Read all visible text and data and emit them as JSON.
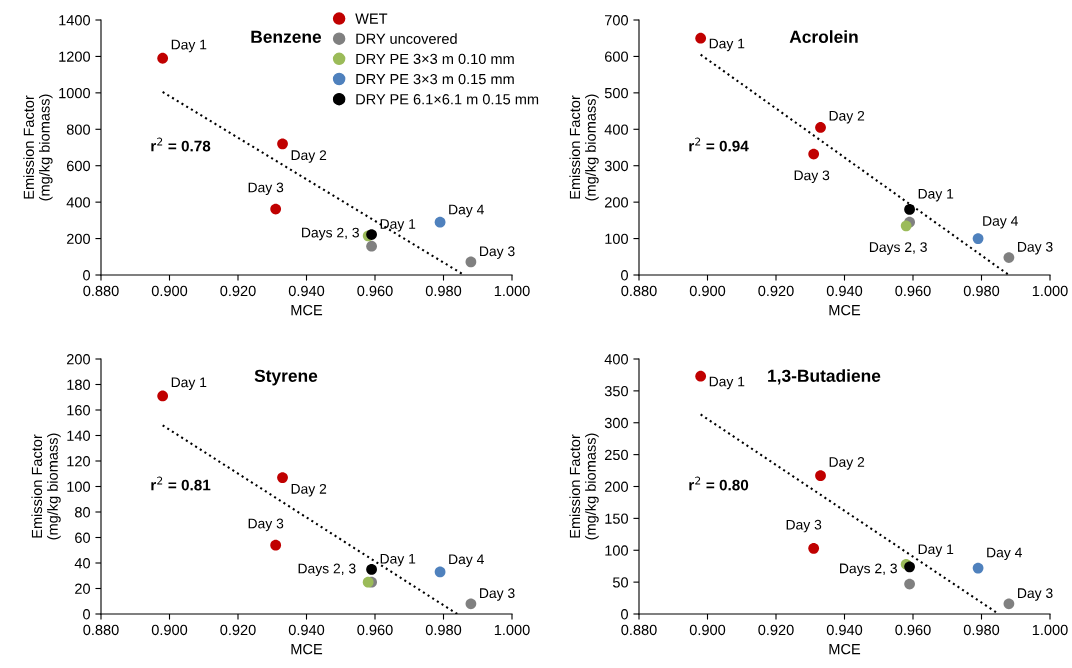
{
  "chart_data": [
    {
      "type": "scatter",
      "title": "Benzene",
      "xlabel": "MCE",
      "ylabel": "Emission Factor\n(mg/kg biomass)",
      "xlim": [
        0.88,
        1.0
      ],
      "ylim": [
        0,
        1400
      ],
      "xticks": [
        {
          "value": 0.88,
          "label": "0.880"
        },
        {
          "value": 0.9,
          "label": "0.900"
        },
        {
          "value": 0.92,
          "label": "0.920"
        },
        {
          "value": 0.94,
          "label": "0.940"
        },
        {
          "value": 0.96,
          "label": "0.960"
        },
        {
          "value": 0.98,
          "label": "0.980"
        },
        {
          "value": 1.0,
          "label": "1.000"
        }
      ],
      "yticks": [
        0,
        200,
        400,
        600,
        800,
        1000,
        1200,
        1400
      ],
      "marker": "circle",
      "grid": false,
      "legend": "top right",
      "series": [
        {
          "name": "WET",
          "color": "#c00000",
          "x": [
            0.898,
            0.933,
            0.931
          ],
          "values": [
            1190,
            720,
            362
          ]
        },
        {
          "name": "DRY uncovered",
          "color": "#808080",
          "x": [
            0.959,
            0.988
          ],
          "values": [
            158,
            72
          ]
        },
        {
          "name": "DRY PE 3×3 m 0.10 mm",
          "color": "#9bbb59",
          "x": [
            0.958
          ],
          "values": [
            215
          ]
        },
        {
          "name": "DRY PE 3×3 m 0.15 mm",
          "color": "#4f81bd",
          "x": [
            0.979
          ],
          "values": [
            290
          ]
        },
        {
          "name": "DRY PE 6.1×6.1 m 0.15 mm",
          "color": "#000000",
          "x": [
            0.959
          ],
          "values": [
            222
          ]
        },
        {
          "type": "line",
          "color": "#000000",
          "line_style": "dotted",
          "marker": "none",
          "x": [
            0.898,
            0.986
          ],
          "values": [
            1005,
            0
          ]
        }
      ],
      "annotations": [
        "r$^{2}$ = 0.78",
        {
          "text": "Day 1",
          "x": 0.898,
          "y": 1190
        },
        {
          "text": "Day 2",
          "x": 0.933,
          "y": 720
        },
        {
          "text": "Day 3",
          "x": 0.931,
          "y": 362
        },
        {
          "text": "Days 2, 3",
          "x": 0.959,
          "y": 158
        },
        {
          "text": "Day 1",
          "x": 0.959,
          "y": 222
        },
        {
          "text": "Day 4",
          "x": 0.979,
          "y": 290
        },
        {
          "text": "Day 3",
          "x": 0.988,
          "y": 72
        }
      ]
    },
    {
      "type": "scatter",
      "title": "Acrolein",
      "xlabel": "MCE",
      "ylabel": "Emission Factor\n(mg/kg biomass)",
      "xlim": [
        0.88,
        1.0
      ],
      "ylim": [
        0,
        700
      ],
      "xticks": [
        {
          "value": 0.88,
          "label": "0.880"
        },
        {
          "value": 0.9,
          "label": "0.900"
        },
        {
          "value": 0.92,
          "label": "0.920"
        },
        {
          "value": 0.94,
          "label": "0.940"
        },
        {
          "value": 0.96,
          "label": "0.960"
        },
        {
          "value": 0.98,
          "label": "0.980"
        },
        {
          "value": 1.0,
          "label": "1.000"
        }
      ],
      "yticks": [
        0,
        100,
        200,
        300,
        400,
        500,
        600,
        700
      ],
      "marker": "circle",
      "grid": false,
      "series": [
        {
          "color": "#c00000",
          "x": [
            0.898,
            0.933,
            0.931
          ],
          "values": [
            650,
            405,
            332
          ]
        },
        {
          "color": "#808080",
          "x": [
            0.959,
            0.988
          ],
          "values": [
            145,
            48
          ]
        },
        {
          "color": "#9bbb59",
          "x": [
            0.958
          ],
          "values": [
            135
          ]
        },
        {
          "color": "#4f81bd",
          "x": [
            0.979
          ],
          "values": [
            100
          ]
        },
        {
          "color": "#000000",
          "x": [
            0.959
          ],
          "values": [
            180
          ]
        },
        {
          "type": "line",
          "color": "#000000",
          "line_style": "dotted",
          "marker": "none",
          "x": [
            0.898,
            0.988
          ],
          "values": [
            605,
            0
          ]
        }
      ],
      "annotations": [
        "r$^{2}$ = 0.94",
        {
          "text": "Day 1",
          "x": 0.898,
          "y": 650
        },
        {
          "text": "Day 2",
          "x": 0.933,
          "y": 405
        },
        {
          "text": "Day 3",
          "x": 0.931,
          "y": 332
        },
        {
          "text": "Days 2, 3",
          "x": 0.958,
          "y": 135
        },
        {
          "text": "Day 1",
          "x": 0.959,
          "y": 180
        },
        {
          "text": "Day 4",
          "x": 0.979,
          "y": 100
        },
        {
          "text": "Day 3",
          "x": 0.988,
          "y": 48
        }
      ]
    },
    {
      "type": "scatter",
      "title": "Styrene",
      "xlabel": "MCE",
      "ylabel": "Emission Factor\n(mg/kg biomass)",
      "xlim": [
        0.88,
        1.0
      ],
      "ylim": [
        0,
        200
      ],
      "xticks": [
        {
          "value": 0.88,
          "label": "0.880"
        },
        {
          "value": 0.9,
          "label": "0.900"
        },
        {
          "value": 0.92,
          "label": "0.920"
        },
        {
          "value": 0.94,
          "label": "0.940"
        },
        {
          "value": 0.96,
          "label": "0.960"
        },
        {
          "value": 0.98,
          "label": "0.980"
        },
        {
          "value": 1.0,
          "label": "1.000"
        }
      ],
      "yticks": [
        0,
        20,
        40,
        60,
        80,
        100,
        120,
        140,
        160,
        180,
        200
      ],
      "marker": "circle",
      "grid": false,
      "series": [
        {
          "color": "#c00000",
          "x": [
            0.898,
            0.933,
            0.931
          ],
          "values": [
            171,
            107,
            54
          ]
        },
        {
          "color": "#808080",
          "x": [
            0.959,
            0.988
          ],
          "values": [
            25,
            8
          ]
        },
        {
          "color": "#9bbb59",
          "x": [
            0.958
          ],
          "values": [
            25
          ]
        },
        {
          "color": "#4f81bd",
          "x": [
            0.979
          ],
          "values": [
            33
          ]
        },
        {
          "color": "#000000",
          "x": [
            0.959
          ],
          "values": [
            35
          ]
        },
        {
          "type": "line",
          "color": "#000000",
          "line_style": "dotted",
          "marker": "none",
          "x": [
            0.898,
            0.984
          ],
          "values": [
            148,
            0
          ]
        }
      ],
      "annotations": [
        "r$^{2}$ = 0.81",
        {
          "text": "Day 1",
          "x": 0.898,
          "y": 171
        },
        {
          "text": "Day 2",
          "x": 0.933,
          "y": 107
        },
        {
          "text": "Day 3",
          "x": 0.931,
          "y": 54
        },
        {
          "text": "Days 2, 3",
          "x": 0.958,
          "y": 25
        },
        {
          "text": "Day 1",
          "x": 0.959,
          "y": 35
        },
        {
          "text": "Day 4",
          "x": 0.979,
          "y": 33
        },
        {
          "text": "Day 3",
          "x": 0.988,
          "y": 8
        }
      ]
    },
    {
      "type": "scatter",
      "title": "1,3-Butadiene",
      "xlabel": "MCE",
      "ylabel": "Emission Factor\n(mg/kg biomass)",
      "xlim": [
        0.88,
        1.0
      ],
      "ylim": [
        0,
        400
      ],
      "xticks": [
        {
          "value": 0.88,
          "label": "0.880"
        },
        {
          "value": 0.9,
          "label": "0.900"
        },
        {
          "value": 0.92,
          "label": "0.920"
        },
        {
          "value": 0.94,
          "label": "0.940"
        },
        {
          "value": 0.96,
          "label": "0.960"
        },
        {
          "value": 0.98,
          "label": "0.980"
        },
        {
          "value": 1.0,
          "label": "1.000"
        }
      ],
      "yticks": [
        0,
        50,
        100,
        150,
        200,
        250,
        300,
        350,
        400
      ],
      "marker": "circle",
      "grid": false,
      "series": [
        {
          "color": "#c00000",
          "x": [
            0.898,
            0.933,
            0.931
          ],
          "values": [
            373,
            217,
            103
          ]
        },
        {
          "color": "#808080",
          "x": [
            0.959,
            0.988
          ],
          "values": [
            47,
            16
          ]
        },
        {
          "color": "#9bbb59",
          "x": [
            0.958
          ],
          "values": [
            78
          ]
        },
        {
          "color": "#4f81bd",
          "x": [
            0.979
          ],
          "values": [
            72
          ]
        },
        {
          "color": "#000000",
          "x": [
            0.959
          ],
          "values": [
            74
          ]
        },
        {
          "type": "line",
          "color": "#000000",
          "line_style": "dotted",
          "marker": "none",
          "x": [
            0.898,
            0.985
          ],
          "values": [
            313,
            0
          ]
        }
      ],
      "annotations": [
        "r$^{2}$ = 0.80",
        {
          "text": "Day 1",
          "x": 0.898,
          "y": 373
        },
        {
          "text": "Day 2",
          "x": 0.933,
          "y": 217
        },
        {
          "text": "Day 3",
          "x": 0.931,
          "y": 103
        },
        {
          "text": "Days 2, 3",
          "x": 0.959,
          "y": 47
        },
        {
          "text": "Day 1",
          "x": 0.959,
          "y": 74
        },
        {
          "text": "Day 4",
          "x": 0.979,
          "y": 72
        },
        {
          "text": "Day 3",
          "x": 0.988,
          "y": 16
        }
      ]
    }
  ]
}
